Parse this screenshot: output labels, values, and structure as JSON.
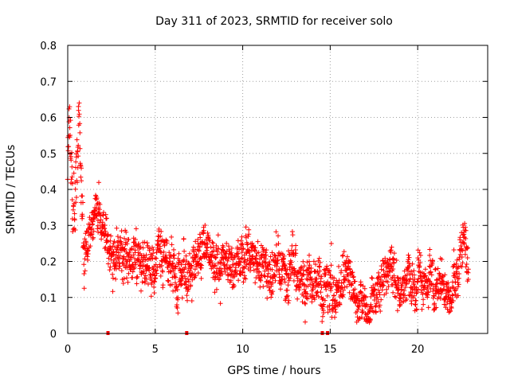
{
  "chart_data": {
    "type": "scatter",
    "title": "Day 311 of 2023, SRMTID for receiver solo",
    "xlabel": "GPS time / hours",
    "ylabel": "SRMTID / TECUs",
    "xlim": [
      0,
      24
    ],
    "ylim": [
      0,
      0.8
    ],
    "xticks": [
      0,
      5,
      10,
      15,
      20
    ],
    "xtick_labels": [
      "0",
      "5",
      "10",
      "15",
      "20"
    ],
    "yticks": [
      0,
      0.1,
      0.2,
      0.3,
      0.4,
      0.5,
      0.6,
      0.7,
      0.8
    ],
    "ytick_labels": [
      "0",
      "0.1",
      "0.2",
      "0.3",
      "0.4",
      "0.5",
      "0.6",
      "0.7",
      "0.8"
    ],
    "grid": true,
    "marker": "+",
    "color": "#ff0000",
    "trend": {
      "x": [
        0.0,
        0.1,
        0.3,
        0.5,
        0.65,
        0.8,
        1.0,
        1.3,
        1.6,
        1.9,
        2.2,
        2.6,
        3.0,
        3.5,
        4.0,
        4.5,
        5.0,
        5.5,
        6.0,
        6.5,
        7.0,
        7.5,
        8.0,
        8.5,
        9.0,
        9.5,
        10.0,
        10.5,
        11.0,
        11.5,
        12.0,
        12.5,
        13.0,
        13.5,
        14.0,
        14.5,
        15.0,
        15.5,
        16.0,
        16.5,
        17.0,
        17.5,
        18.0,
        18.5,
        19.0,
        19.5,
        20.0,
        20.5,
        21.0,
        21.5,
        22.0,
        22.3,
        22.5,
        22.7,
        22.9
      ],
      "y": [
        0.45,
        0.58,
        0.35,
        0.38,
        0.55,
        0.3,
        0.22,
        0.26,
        0.33,
        0.3,
        0.24,
        0.2,
        0.22,
        0.24,
        0.21,
        0.2,
        0.18,
        0.21,
        0.19,
        0.16,
        0.2,
        0.22,
        0.24,
        0.2,
        0.21,
        0.17,
        0.22,
        0.21,
        0.18,
        0.19,
        0.17,
        0.18,
        0.16,
        0.15,
        0.16,
        0.12,
        0.12,
        0.11,
        0.13,
        0.1,
        0.08,
        0.12,
        0.17,
        0.16,
        0.13,
        0.15,
        0.12,
        0.15,
        0.13,
        0.12,
        0.13,
        0.16,
        0.22,
        0.28,
        0.2
      ]
    },
    "spread": 0.055,
    "n_points": 2050,
    "gap_markers_x": [
      2.3,
      6.8,
      14.55,
      14.85
    ]
  }
}
